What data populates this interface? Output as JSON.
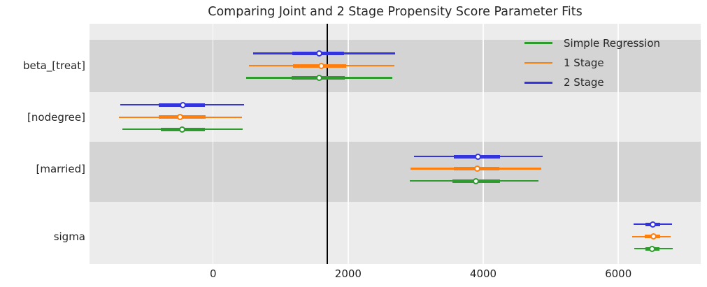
{
  "chart_data": {
    "type": "forest_interval",
    "title": "Comparing Joint and 2 Stage Propensity Score Parameter Fits",
    "categories": [
      "beta_[treat]",
      "[nodegree]",
      "[married]",
      "sigma"
    ],
    "x_ticks": [
      0,
      2000,
      4000,
      6000
    ],
    "xlim": [
      -1830,
      7220
    ],
    "ref_line_x": 1690,
    "grid": "vertical-white-gridlines",
    "legend_position": "upper-right",
    "series": [
      {
        "name": "Simple Regression",
        "color": "#2e9b2e",
        "estimates": [
          {
            "point": 1575,
            "inner": [
              1165,
              1950
            ],
            "outer": [
              490,
              2650
            ]
          },
          {
            "point": -455,
            "inner": [
              -775,
              -125
            ],
            "outer": [
              -1340,
              440
            ]
          },
          {
            "point": 3895,
            "inner": [
              3545,
              4245
            ],
            "outer": [
              2910,
              4820
            ]
          },
          {
            "point": 6505,
            "inner": [
              6400,
              6610
            ],
            "outer": [
              6240,
              6805
            ]
          }
        ]
      },
      {
        "name": "1 Stage",
        "color": "#ff7f0e",
        "estimates": [
          {
            "point": 1600,
            "inner": [
              1180,
              1975
            ],
            "outer": [
              530,
              2680
            ]
          },
          {
            "point": -485,
            "inner": [
              -800,
              -110
            ],
            "outer": [
              -1390,
              430
            ]
          },
          {
            "point": 3915,
            "inner": [
              3565,
              4240
            ],
            "outer": [
              2920,
              4860
            ]
          },
          {
            "point": 6520,
            "inner": [
              6395,
              6620
            ],
            "outer": [
              6205,
              6780
            ]
          }
        ]
      },
      {
        "name": "2 Stage",
        "color": "#3434dd",
        "estimates": [
          {
            "point": 1570,
            "inner": [
              1170,
              1940
            ],
            "outer": [
              590,
              2690
            ]
          },
          {
            "point": -450,
            "inner": [
              -805,
              -120
            ],
            "outer": [
              -1370,
              455
            ]
          },
          {
            "point": 3920,
            "inner": [
              3565,
              4245
            ],
            "outer": [
              2970,
              4880
            ]
          },
          {
            "point": 6510,
            "inner": [
              6405,
              6615
            ],
            "outer": [
              6230,
              6800
            ]
          }
        ]
      }
    ],
    "colors": {
      "figure_bg": "#ffffff",
      "plot_bg": "#ececec",
      "band": "#d4d4d4",
      "grid": "#ffffff",
      "ref_line": "#000000",
      "text": "#262626"
    }
  }
}
